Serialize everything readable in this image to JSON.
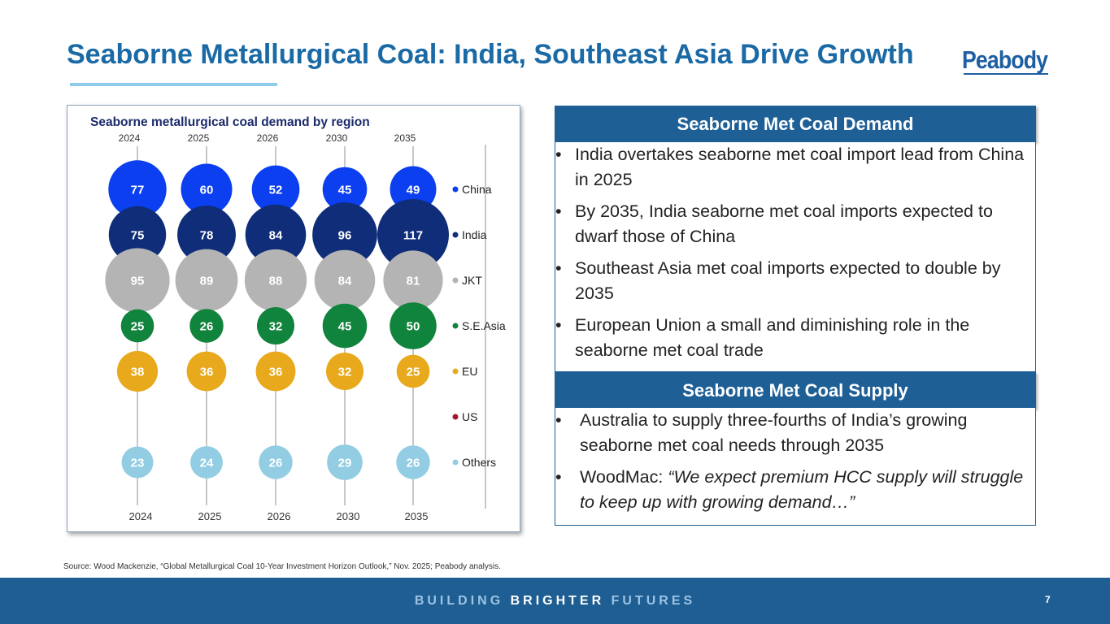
{
  "slide": {
    "title": "Seaborne Metallurgical Coal: India, Southeast Asia Drive Growth",
    "logo_text": "Peabody",
    "source": "Source: Wood Mackenzie, “Global Metallurgical Coal 10-Year Investment Horizon Outlook,” Nov. 2025; Peabody analysis.",
    "footer_light_1": "BUILDING",
    "footer_bold": "BRIGHTER",
    "footer_light_2": "FUTURES",
    "page_number": "7"
  },
  "panels": {
    "demand": {
      "header": "Seaborne Met Coal Demand",
      "bullets": [
        "India overtakes seaborne met coal import lead from China in 2025",
        "By 2035, India seaborne met coal imports expected to dwarf those of China",
        "Southeast Asia met coal imports expected to double by 2035",
        "European Union a small and diminishing role in the seaborne met coal trade"
      ]
    },
    "supply": {
      "header": "Seaborne Met Coal Supply",
      "bullet1": "Australia to supply three-fourths of India’s growing seaborne met coal needs through 2035",
      "bullet2_prefix": "WoodMac: ",
      "bullet2_quote": "“We expect premium HCC supply will struggle to keep up with growing demand…”"
    }
  },
  "chart_data": {
    "type": "bubble",
    "title": "Seaborne metallurgical coal demand by region",
    "categories": [
      "2024",
      "2025",
      "2026",
      "2030",
      "2035"
    ],
    "series": [
      {
        "name": "China",
        "color": "#0b3ff0",
        "values": [
          77,
          60,
          52,
          45,
          49
        ]
      },
      {
        "name": "India",
        "color": "#0f2d78",
        "values": [
          75,
          78,
          84,
          96,
          117
        ]
      },
      {
        "name": "JKT",
        "color": "#b4b4b4",
        "values": [
          95,
          89,
          88,
          84,
          81
        ]
      },
      {
        "name": "S.E.Asia",
        "color": "#10833c",
        "values": [
          25,
          26,
          32,
          45,
          50
        ]
      },
      {
        "name": "EU",
        "color": "#e8a91c",
        "values": [
          38,
          36,
          36,
          32,
          25
        ]
      },
      {
        "name": "US",
        "color": "#a3182d",
        "values": [
          null,
          null,
          null,
          null,
          null
        ]
      },
      {
        "name": "Others",
        "color": "#93cde4",
        "values": [
          23,
          24,
          26,
          29,
          26
        ]
      }
    ],
    "legend_position": "right",
    "bubble_label_color_dark": "#ffffff",
    "bubble_label_color_light": "#ffffff",
    "axis_line_color": "#c8c8c8",
    "title_color": "#1b2a6b"
  }
}
